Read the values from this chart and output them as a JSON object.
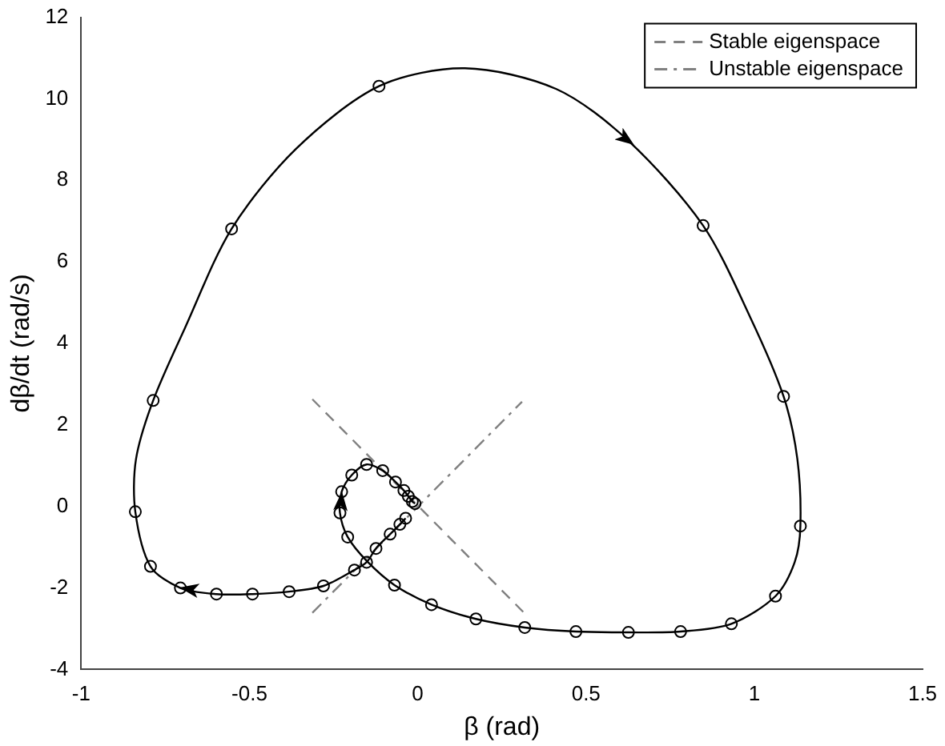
{
  "chart_data": {
    "type": "line",
    "xlabel": "β (rad)",
    "ylabel": "dβ/dt (rad/s)",
    "xlim": [
      -1,
      1.5
    ],
    "xticks": [
      -1,
      -0.5,
      0,
      0.5,
      1,
      1.5
    ],
    "ylim": [
      -4,
      12
    ],
    "yticks": [
      -4,
      -2,
      0,
      2,
      4,
      6,
      8,
      10,
      12
    ],
    "grid": false,
    "legend": "top right",
    "series": [
      {
        "type": "line",
        "color": "#000000",
        "marker": "none",
        "line_style": "solid",
        "x": [
          -0.036,
          -0.053,
          -0.082,
          -0.124,
          -0.152,
          -0.188,
          -0.28,
          -0.382,
          -0.491,
          -0.598,
          -0.705,
          -0.794,
          -0.839,
          -0.837,
          -0.786,
          -0.692,
          -0.553,
          -0.362,
          -0.115,
          0.14,
          0.412,
          0.626,
          0.848,
          0.988,
          1.087,
          1.128,
          1.137,
          1.12,
          1.063,
          0.932,
          0.781,
          0.626,
          0.47,
          0.318,
          0.173,
          0.041,
          -0.069,
          -0.15,
          -0.208,
          -0.231,
          -0.226,
          -0.196,
          -0.152,
          -0.104,
          -0.066,
          -0.041,
          -0.028,
          -0.016,
          -0.008
        ],
        "values": [
          -0.29,
          -0.44,
          -0.68,
          -1.03,
          -1.37,
          -1.56,
          -1.95,
          -2.09,
          -2.15,
          -2.15,
          -2.0,
          -1.47,
          -0.13,
          1.16,
          2.6,
          4.37,
          6.81,
          8.77,
          10.31,
          10.75,
          10.24,
          8.97,
          6.89,
          4.64,
          2.7,
          1.16,
          -0.48,
          -1.37,
          -2.2,
          -2.88,
          -3.07,
          -3.09,
          -3.07,
          -2.97,
          -2.76,
          -2.41,
          -1.93,
          -1.35,
          -0.75,
          -0.16,
          0.36,
          0.77,
          1.03,
          0.88,
          0.6,
          0.39,
          0.25,
          0.12,
          0.07
        ]
      },
      {
        "type": "scatter",
        "color": "#000000",
        "marker": "circle",
        "x": [
          -0.036,
          -0.053,
          -0.082,
          -0.124,
          -0.152,
          -0.188,
          -0.28,
          -0.382,
          -0.491,
          -0.598,
          -0.705,
          -0.794,
          -0.839,
          -0.786,
          -0.553,
          -0.115,
          0.848,
          1.087,
          1.137,
          1.063,
          0.932,
          0.781,
          0.626,
          0.47,
          0.318,
          0.173,
          0.041,
          -0.069,
          -0.208,
          -0.231,
          -0.226,
          -0.196,
          -0.152,
          -0.104,
          -0.066,
          -0.041,
          -0.028,
          -0.016,
          -0.008
        ],
        "values": [
          -0.29,
          -0.44,
          -0.68,
          -1.03,
          -1.37,
          -1.56,
          -1.95,
          -2.09,
          -2.15,
          -2.15,
          -2.0,
          -1.47,
          -0.13,
          2.6,
          6.81,
          10.31,
          6.89,
          2.7,
          -0.48,
          -2.2,
          -2.88,
          -3.07,
          -3.09,
          -3.07,
          -2.97,
          -2.76,
          -2.41,
          -1.93,
          -0.75,
          -0.16,
          0.36,
          0.77,
          1.03,
          0.88,
          0.6,
          0.39,
          0.25,
          0.12,
          0.07
        ]
      },
      {
        "type": "line",
        "name": "Stable eigenspace",
        "color": "#808080",
        "marker": "none",
        "line_style": "dashed",
        "x": [
          -0.313,
          0.316
        ],
        "values": [
          2.63,
          -2.61
        ]
      },
      {
        "type": "line",
        "name": "Unstable eigenspace",
        "color": "#808080",
        "marker": "none",
        "line_style": "dashdot",
        "x": [
          -0.313,
          0.31
        ],
        "values": [
          -2.61,
          2.57
        ]
      }
    ]
  }
}
